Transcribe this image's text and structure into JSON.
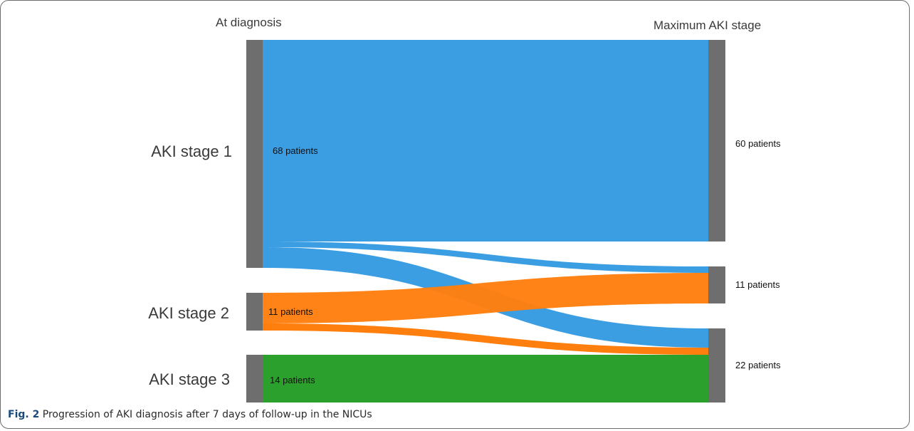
{
  "headers": {
    "left": "At diagnosis",
    "right": "Maximum AKI stage"
  },
  "source_nodes": [
    {
      "label": "AKI stage 1",
      "patients": "68 patients",
      "color": "#3b9de2"
    },
    {
      "label": "AKI stage 2",
      "patients": "11 patients",
      "color": "#ff7f0e"
    },
    {
      "label": "AKI stage 3",
      "patients": "14 patients",
      "color": "#2ca02c"
    }
  ],
  "target_nodes": [
    {
      "patients": "60 patients"
    },
    {
      "patients": "11 patients"
    },
    {
      "patients": "22 patients"
    }
  ],
  "node_color": "#6e6e6e",
  "caption": {
    "fig": "Fig. 2",
    "text": "Progression of AKI diagnosis after 7 days of follow-up in the NICUs"
  }
}
